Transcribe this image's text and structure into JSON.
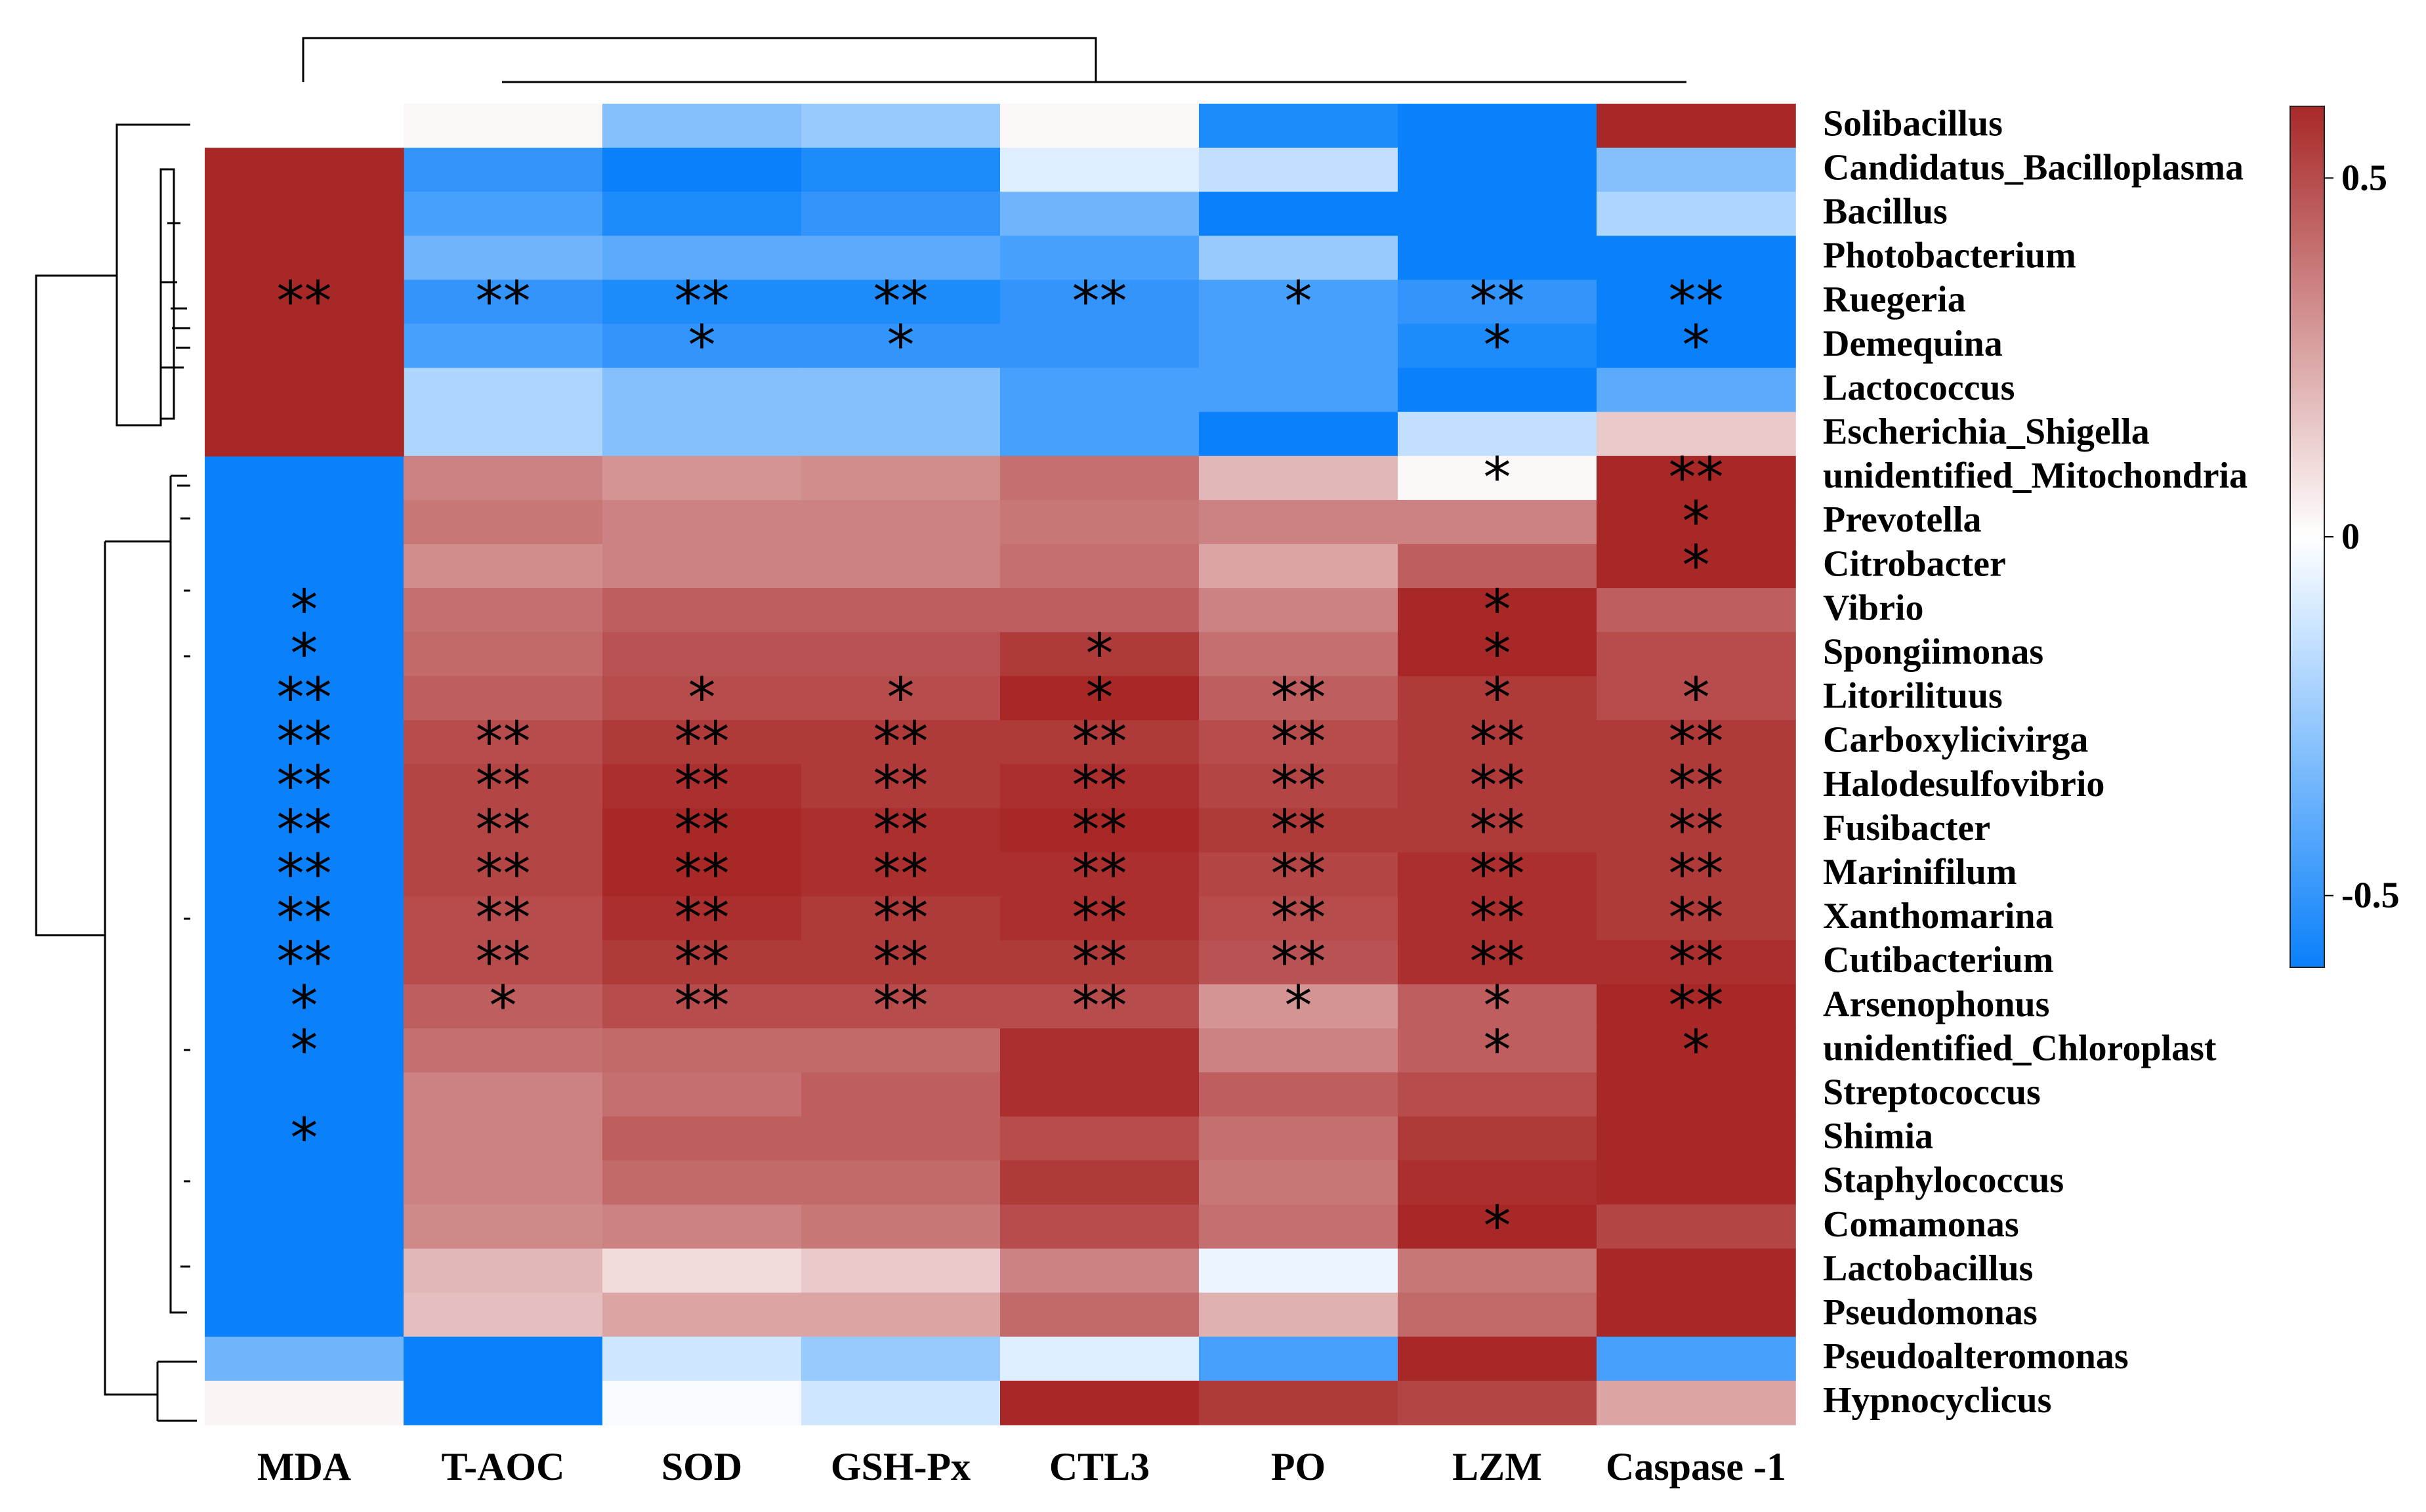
{
  "chart_data": {
    "type": "heatmap",
    "columns": [
      "MDA",
      "T-AOC",
      "SOD",
      "GSH-Px",
      "CTL3",
      "PO",
      "LZM",
      "Caspase -1"
    ],
    "rows": [
      "Solibacillus",
      "Candidatus_Bacilloplasma",
      "Bacillus",
      "Photobacterium",
      "Ruegeria",
      "Demequina",
      "Lactococcus",
      "Escherichia_Shigella",
      "unidentified_Mitochondria",
      "Prevotella",
      "Citrobacter",
      "Vibrio",
      "Spongiimonas",
      "Litorilituus",
      "Carboxylicivirga",
      "Halodesulfovibrio",
      "Fusibacter",
      "Marinifilum",
      "Xanthomarina",
      "Cutibacterium",
      "Arsenophonus",
      "unidentified_Chloroplast",
      "Streptococcus",
      "Shimia",
      "Staphylococcus",
      "Comamonas",
      "Lactobacillus",
      "Pseudomonas",
      "Pseudoalteromonas",
      "Hypnocyclicus"
    ],
    "values": [
      [
        0.0,
        0.02,
        -0.3,
        -0.25,
        0.02,
        -0.55,
        -0.6,
        0.6
      ],
      [
        0.6,
        -0.5,
        -0.6,
        -0.55,
        -0.08,
        -0.15,
        -0.6,
        -0.3
      ],
      [
        0.6,
        -0.45,
        -0.55,
        -0.5,
        -0.35,
        -0.6,
        -0.6,
        -0.2
      ],
      [
        0.6,
        -0.35,
        -0.4,
        -0.4,
        -0.45,
        -0.25,
        -0.6,
        -0.6
      ],
      [
        0.6,
        -0.5,
        -0.55,
        -0.55,
        -0.5,
        -0.45,
        -0.5,
        -0.6
      ],
      [
        0.6,
        -0.45,
        -0.5,
        -0.5,
        -0.5,
        -0.45,
        -0.55,
        -0.6
      ],
      [
        0.6,
        -0.2,
        -0.3,
        -0.3,
        -0.45,
        -0.45,
        -0.6,
        -0.4
      ],
      [
        0.6,
        -0.2,
        -0.3,
        -0.3,
        -0.45,
        -0.6,
        -0.15,
        0.15
      ],
      [
        -0.6,
        0.35,
        0.3,
        0.32,
        0.4,
        0.2,
        0.02,
        0.6
      ],
      [
        -0.6,
        0.38,
        0.35,
        0.35,
        0.38,
        0.35,
        0.35,
        0.6
      ],
      [
        -0.6,
        0.32,
        0.35,
        0.35,
        0.4,
        0.25,
        0.45,
        0.6
      ],
      [
        -0.6,
        0.4,
        0.45,
        0.45,
        0.45,
        0.35,
        0.6,
        0.45
      ],
      [
        -0.6,
        0.42,
        0.48,
        0.48,
        0.55,
        0.4,
        0.6,
        0.5
      ],
      [
        -0.6,
        0.45,
        0.5,
        0.5,
        0.6,
        0.45,
        0.55,
        0.5
      ],
      [
        -0.6,
        0.5,
        0.55,
        0.55,
        0.55,
        0.5,
        0.55,
        0.55
      ],
      [
        -0.6,
        0.52,
        0.58,
        0.55,
        0.58,
        0.52,
        0.55,
        0.55
      ],
      [
        -0.6,
        0.52,
        0.6,
        0.58,
        0.6,
        0.55,
        0.55,
        0.55
      ],
      [
        -0.6,
        0.52,
        0.6,
        0.58,
        0.58,
        0.52,
        0.58,
        0.55
      ],
      [
        -0.6,
        0.5,
        0.58,
        0.55,
        0.58,
        0.5,
        0.58,
        0.55
      ],
      [
        -0.6,
        0.5,
        0.55,
        0.55,
        0.55,
        0.48,
        0.58,
        0.58
      ],
      [
        -0.6,
        0.45,
        0.5,
        0.5,
        0.5,
        0.3,
        0.45,
        0.6
      ],
      [
        -0.6,
        0.4,
        0.42,
        0.42,
        0.58,
        0.35,
        0.45,
        0.6
      ],
      [
        -0.6,
        0.35,
        0.4,
        0.45,
        0.58,
        0.45,
        0.5,
        0.6
      ],
      [
        -0.6,
        0.35,
        0.45,
        0.45,
        0.5,
        0.4,
        0.55,
        0.6
      ],
      [
        -0.6,
        0.35,
        0.42,
        0.42,
        0.55,
        0.38,
        0.58,
        0.6
      ],
      [
        -0.6,
        0.33,
        0.35,
        0.38,
        0.5,
        0.4,
        0.6,
        0.52
      ],
      [
        -0.6,
        0.2,
        0.1,
        0.15,
        0.35,
        -0.05,
        0.38,
        0.6
      ],
      [
        -0.6,
        0.18,
        0.25,
        0.25,
        0.42,
        0.22,
        0.42,
        0.6
      ],
      [
        -0.35,
        -0.6,
        -0.12,
        -0.25,
        -0.08,
        -0.45,
        0.6,
        -0.45
      ],
      [
        0.03,
        -0.6,
        -0.02,
        -0.12,
        0.6,
        0.55,
        0.52,
        0.25
      ]
    ],
    "significance": [
      [
        "",
        "",
        "",
        "",
        "",
        "",
        "",
        ""
      ],
      [
        "",
        "",
        "",
        "",
        "",
        "",
        "",
        ""
      ],
      [
        "",
        "",
        "",
        "",
        "",
        "",
        "",
        ""
      ],
      [
        "",
        "",
        "",
        "",
        "",
        "",
        "",
        ""
      ],
      [
        "**",
        "**",
        "**",
        "**",
        "**",
        "*",
        "**",
        "**"
      ],
      [
        "",
        "",
        "*",
        "*",
        "",
        "",
        "*",
        "*"
      ],
      [
        "",
        "",
        "",
        "",
        "",
        "",
        "",
        ""
      ],
      [
        "",
        "",
        "",
        "",
        "",
        "",
        "",
        ""
      ],
      [
        "",
        "",
        "",
        "",
        "",
        "",
        "*",
        "**"
      ],
      [
        "",
        "",
        "",
        "",
        "",
        "",
        "",
        "*"
      ],
      [
        "",
        "",
        "",
        "",
        "",
        "",
        "",
        "*"
      ],
      [
        "*",
        "",
        "",
        "",
        "",
        "",
        "*",
        ""
      ],
      [
        "*",
        "",
        "",
        "",
        "*",
        "",
        "*",
        ""
      ],
      [
        "**",
        "",
        "*",
        "*",
        "*",
        "**",
        "*",
        "*"
      ],
      [
        "**",
        "**",
        "**",
        "**",
        "**",
        "**",
        "**",
        "**"
      ],
      [
        "**",
        "**",
        "**",
        "**",
        "**",
        "**",
        "**",
        "**"
      ],
      [
        "**",
        "**",
        "**",
        "**",
        "**",
        "**",
        "**",
        "**"
      ],
      [
        "**",
        "**",
        "**",
        "**",
        "**",
        "**",
        "**",
        "**"
      ],
      [
        "**",
        "**",
        "**",
        "**",
        "**",
        "**",
        "**",
        "**"
      ],
      [
        "**",
        "**",
        "**",
        "**",
        "**",
        "**",
        "**",
        "**"
      ],
      [
        "*",
        "*",
        "**",
        "**",
        "**",
        "*",
        "*",
        "**"
      ],
      [
        "*",
        "",
        "",
        "",
        "",
        "",
        "*",
        "*"
      ],
      [
        "",
        "",
        "",
        "",
        "",
        "",
        "",
        ""
      ],
      [
        "*",
        "",
        "",
        "",
        "",
        "",
        "",
        ""
      ],
      [
        "",
        "",
        "",
        "",
        "",
        "",
        "",
        ""
      ],
      [
        "",
        "",
        "",
        "",
        "",
        "",
        "*",
        ""
      ],
      [
        "",
        "",
        "",
        "",
        "",
        "",
        "",
        ""
      ],
      [
        "",
        "",
        "",
        "",
        "",
        "",
        "",
        ""
      ],
      [
        "",
        "",
        "",
        "",
        "",
        "",
        "",
        ""
      ],
      [
        "",
        "",
        "",
        "",
        "",
        "",
        "",
        ""
      ]
    ],
    "merged_cells": [
      {
        "column": "MDA",
        "row_start": 1,
        "row_end": 7,
        "value": 0.6,
        "significance": "**"
      }
    ],
    "color_scale": {
      "range": [
        -0.6,
        0.6
      ],
      "ticks": [
        0.5,
        0,
        -0.5
      ],
      "tick_labels": [
        "0.5",
        "0",
        "-0.5"
      ],
      "colors": {
        "low": "#0a80fa",
        "mid": "#ffffff",
        "high": "#a82828"
      }
    },
    "column_dendrogram": true,
    "row_dendrogram": true
  }
}
